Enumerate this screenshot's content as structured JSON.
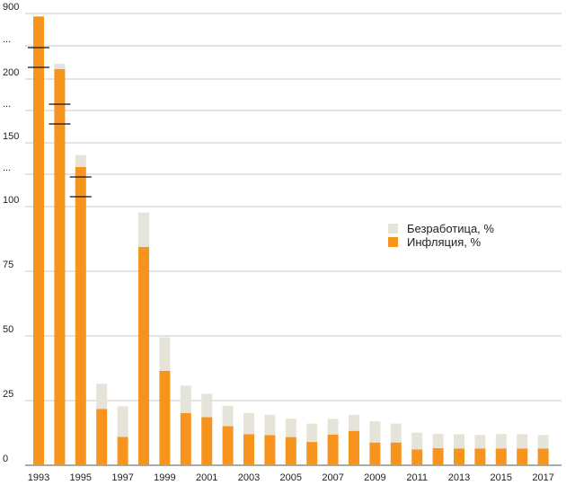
{
  "chart_data": {
    "type": "bar",
    "stacked": true,
    "grid": true,
    "legend_position": "center-right",
    "axis_break": true,
    "years": [
      1993,
      1994,
      1995,
      1996,
      1997,
      1998,
      1999,
      2000,
      2001,
      2002,
      2003,
      2004,
      2005,
      2006,
      2007,
      2008,
      2009,
      2010,
      2011,
      2012,
      2013,
      2014,
      2015,
      2016,
      2017
    ],
    "x_tick_labels": [
      "1993",
      "1995",
      "1997",
      "1999",
      "2001",
      "2003",
      "2005",
      "2007",
      "2009",
      "2011",
      "2013",
      "2015",
      "2017"
    ],
    "y_tick_labels": [
      "0",
      "25",
      "50",
      "75",
      "100",
      "...",
      "150",
      "...",
      "200",
      "...",
      "900"
    ],
    "series": [
      {
        "name": "Инфляция, %",
        "color": "#f7941d",
        "values": [
          840,
          215,
          131,
          21.8,
          11.0,
          84.4,
          36.5,
          20.2,
          18.6,
          15.1,
          12.0,
          11.7,
          10.9,
          9.0,
          11.9,
          13.3,
          8.8,
          8.8,
          6.1,
          6.6,
          6.5,
          6.5,
          6.5,
          6.5,
          6.5
        ]
      },
      {
        "name": "Безработица, %",
        "color": "#e6e4d8",
        "values": [
          5.9,
          8.1,
          9.4,
          9.7,
          11.8,
          13.3,
          13.0,
          10.6,
          9.0,
          7.9,
          8.2,
          7.8,
          7.1,
          7.1,
          6.0,
          6.2,
          8.2,
          7.3,
          6.5,
          5.5,
          5.5,
          5.2,
          5.6,
          5.5,
          5.2
        ]
      }
    ]
  },
  "legend": {
    "unemployment_label": "Безработица, %",
    "inflation_label": "Инфляция, %"
  }
}
